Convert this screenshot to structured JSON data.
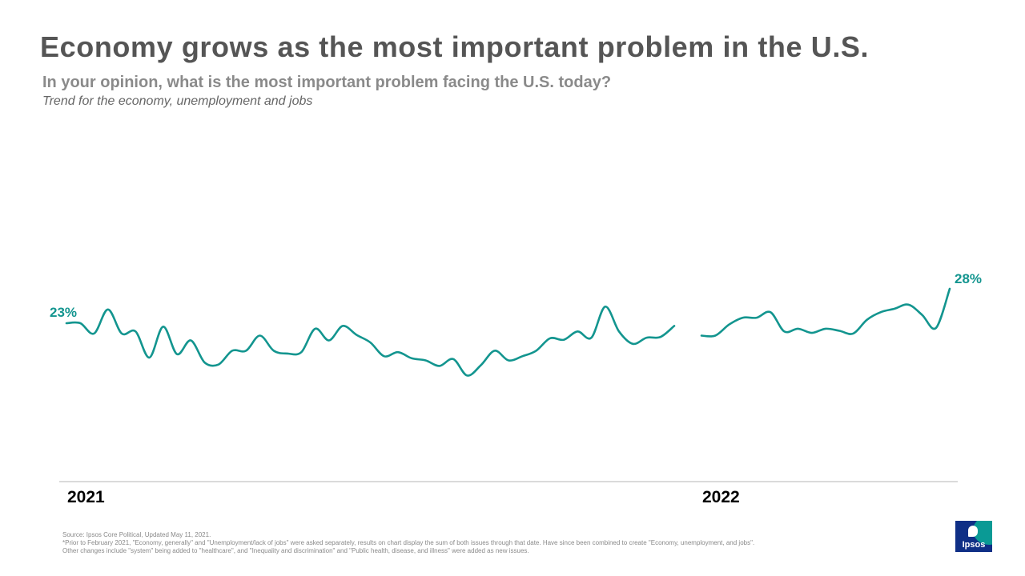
{
  "title": "Economy grows as the most important problem in the U.S.",
  "subtitle": "In your opinion, what is the most important problem facing the U.S. today?",
  "note": "Trend for the economy, unemployment and jobs",
  "chart_data": {
    "type": "line",
    "x_labels": [
      "2021",
      "2022"
    ],
    "series": [
      {
        "segments": [
          [
            23,
            23,
            21.5,
            25,
            21.5,
            21.8,
            18,
            22.5,
            18.5,
            20.5,
            17.3,
            17,
            19,
            19,
            21.2,
            19,
            18.6,
            18.8,
            22.2,
            20.5,
            22.6,
            21.3,
            20.2,
            18.2,
            18.8,
            17.9,
            17.6,
            16.8,
            17.8,
            15.4,
            16.9,
            19,
            17.6,
            18.2,
            19,
            20.8,
            20.6,
            21.8,
            20.9,
            25.4,
            21.8,
            20,
            20.9,
            21,
            22.6
          ],
          [
            21.2,
            21.2,
            22.8,
            23.8,
            23.8,
            24.6,
            21.8,
            22.2,
            21.6,
            22.2,
            21.9,
            21.5,
            23.5,
            24.6,
            25.1,
            25.7,
            24.2,
            22.3,
            28
          ]
        ]
      }
    ],
    "data_labels": {
      "start": "23%",
      "end": "28%"
    },
    "ylim": [
      0,
      60
    ],
    "grid": false,
    "legend": "none",
    "line_color": "#13958f"
  },
  "footer": {
    "source": "Source: Ipsos Core Political, Updated May 11, 2021.",
    "note1": "*Prior to February 2021, \"Economy,  generally\" and \"Unemployment/lack  of jobs\" were asked separately, results on chart display the sum of both issues through that date. Have since been combined  to create \"Economy,  unemployment,   and jobs\".",
    "note2": "Other changes include \"system\" being added to \"healthcare\",  and  \"Inequality and discrimination\" and \"Public health, disease, and illness\" were added as new issues."
  },
  "logo": {
    "text": "Ipsos",
    "colors": {
      "navy": "#0f2f86",
      "teal": "#0a9a95"
    }
  }
}
